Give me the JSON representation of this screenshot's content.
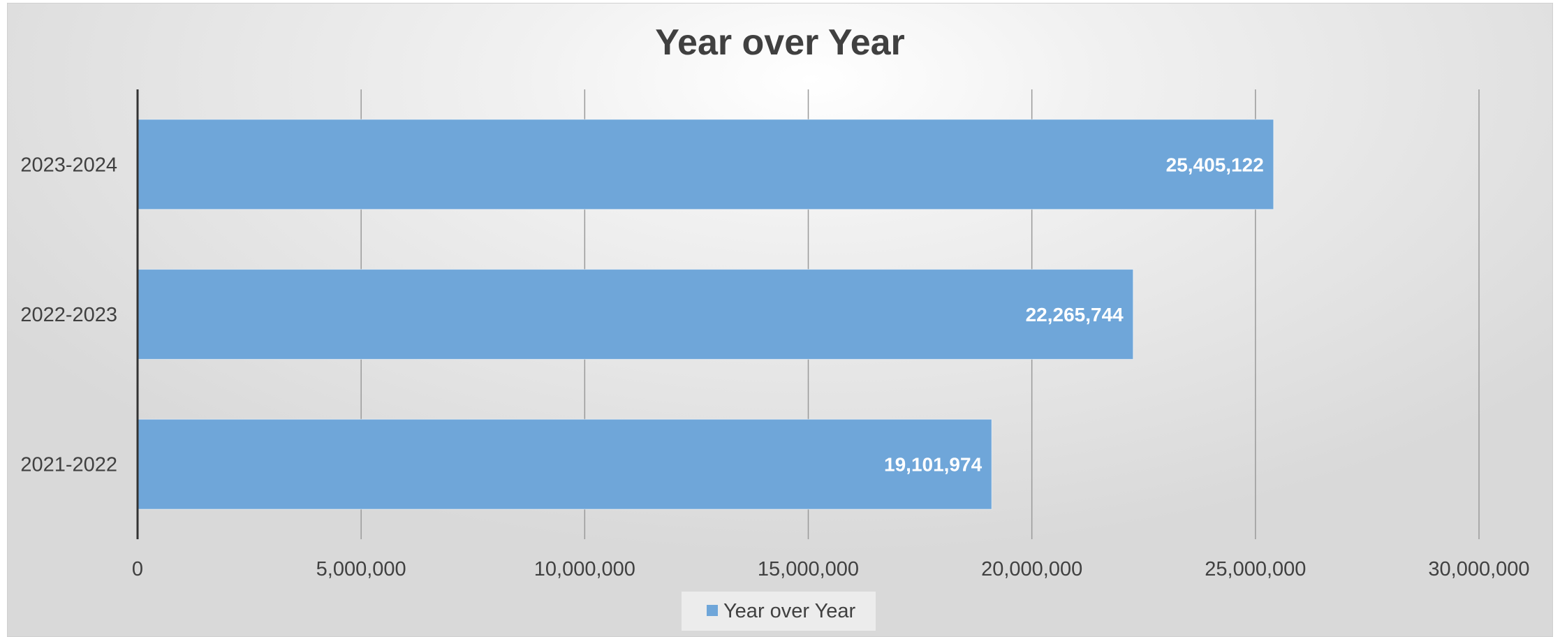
{
  "chart_data": {
    "type": "bar",
    "orientation": "horizontal",
    "title": "Year over Year",
    "categories": [
      "2021-2022",
      "2022-2023",
      "2023-2024"
    ],
    "series": [
      {
        "name": "Year over Year",
        "values": [
          19101974,
          22265744,
          25405122
        ],
        "color": "#6fa6d9"
      }
    ],
    "data_labels": [
      "19,101,974",
      "22,265,744",
      "25,405,122"
    ],
    "xlim": [
      0,
      30000000
    ],
    "x_ticks": [
      0,
      5000000,
      10000000,
      15000000,
      20000000,
      25000000,
      30000000
    ],
    "x_tick_labels": [
      "0",
      "5,000,000",
      "10,000,000",
      "15,000,000",
      "20,000,000",
      "25,000,000",
      "30,000,000"
    ],
    "grid": "vertical",
    "legend": "bottom"
  }
}
